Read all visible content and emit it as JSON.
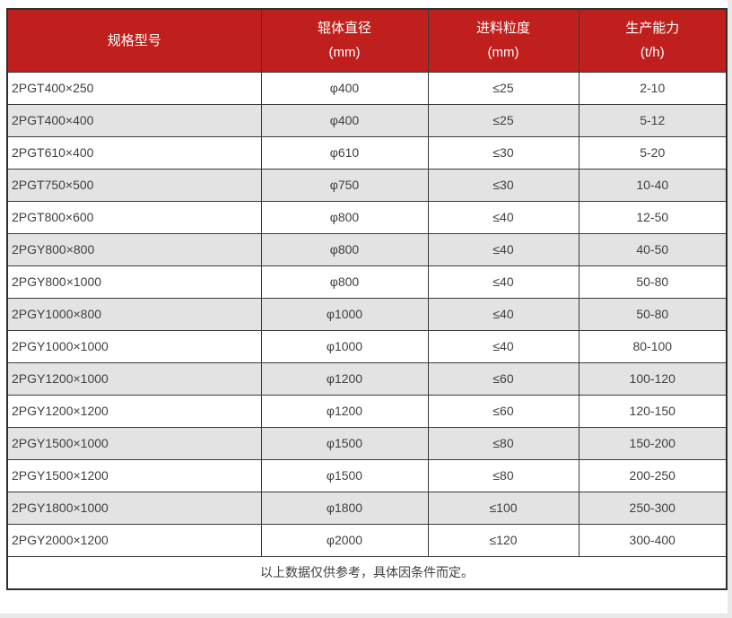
{
  "colors": {
    "header_bg": "#bf201d",
    "header_text": "#ffffff",
    "stripe_bg": "#e3e3e3",
    "border_outer": "#2e2e2e",
    "border_inner": "#3a3a3a",
    "text": "#404040",
    "page_edge": "#e9e9e9"
  },
  "table": {
    "headers": [
      {
        "line1": "规格型号",
        "line2": ""
      },
      {
        "line1": "辊体直径",
        "line2": "(mm)"
      },
      {
        "line1": "进料粒度",
        "line2": "(mm)"
      },
      {
        "line1": "生产能力",
        "line2": "(t/h)"
      }
    ],
    "rows": [
      [
        "2PGT400×250",
        "φ400",
        "≤25",
        "2-10"
      ],
      [
        "2PGT400×400",
        "φ400",
        "≤25",
        "5-12"
      ],
      [
        "2PGT610×400",
        "φ610",
        "≤30",
        "5-20"
      ],
      [
        "2PGT750×500",
        "φ750",
        "≤30",
        "10-40"
      ],
      [
        "2PGT800×600",
        "φ800",
        "≤40",
        "12-50"
      ],
      [
        "2PGY800×800",
        "φ800",
        "≤40",
        "40-50"
      ],
      [
        "2PGY800×1000",
        "φ800",
        "≤40",
        "50-80"
      ],
      [
        "2PGY1000×800",
        "φ1000",
        "≤40",
        "50-80"
      ],
      [
        "2PGY1000×1000",
        "φ1000",
        "≤40",
        "80-100"
      ],
      [
        "2PGY1200×1000",
        "φ1200",
        "≤60",
        "100-120"
      ],
      [
        "2PGY1200×1200",
        "φ1200",
        "≤60",
        "120-150"
      ],
      [
        "2PGY1500×1000",
        "φ1500",
        "≤80",
        "150-200"
      ],
      [
        "2PGY1500×1200",
        "φ1500",
        "≤80",
        "200-250"
      ],
      [
        "2PGY1800×1000",
        "φ1800",
        "≤100",
        "250-300"
      ],
      [
        "2PGY2000×1200",
        "φ2000",
        "≤120",
        "300-400"
      ]
    ],
    "footer_note": "以上数据仅供参考，具体因条件而定。"
  }
}
